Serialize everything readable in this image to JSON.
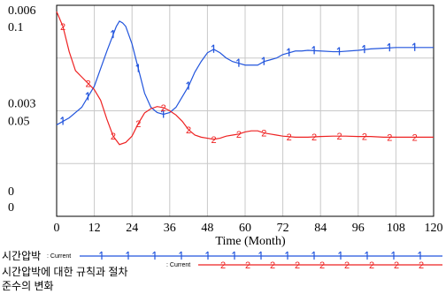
{
  "chart_data": {
    "type": "line",
    "xlabel": "Time (Month)",
    "xlim": [
      0,
      120
    ],
    "x_ticks": [
      0,
      12,
      24,
      36,
      48,
      60,
      72,
      84,
      96,
      108,
      120
    ],
    "grid": true,
    "legend_position": "bottom-left",
    "axes": [
      {
        "name": "left-top",
        "ticks": [
          "0.006",
          "0.003",
          "0"
        ],
        "ylim": [
          0,
          0.006
        ]
      },
      {
        "name": "left-bottom",
        "ticks": [
          "0.1",
          "0.05",
          "0"
        ],
        "ylim": [
          0,
          0.1
        ]
      }
    ],
    "series": [
      {
        "name": "시간압박",
        "run": "Current",
        "color": "#2255dd",
        "marker": "1",
        "axis": "left-top",
        "x": [
          0,
          4,
          8,
          12,
          16,
          19,
          20,
          21,
          22,
          24,
          26,
          28,
          30,
          32,
          34,
          36,
          38,
          40,
          42,
          44,
          46,
          48,
          50,
          52,
          54,
          56,
          58,
          60,
          62,
          64,
          66,
          68,
          70,
          72,
          74,
          76,
          78,
          80,
          84,
          88,
          90,
          96,
          100,
          104,
          108,
          112,
          116,
          120
        ],
        "y": [
          0.0026,
          0.0028,
          0.0031,
          0.0037,
          0.0047,
          0.0054,
          0.00555,
          0.0055,
          0.0054,
          0.0049,
          0.0042,
          0.0035,
          0.0031,
          0.00295,
          0.0029,
          0.00295,
          0.0031,
          0.0034,
          0.0037,
          0.0041,
          0.0044,
          0.00465,
          0.00475,
          0.00465,
          0.0045,
          0.0044,
          0.00435,
          0.0043,
          0.0043,
          0.0043,
          0.0044,
          0.00445,
          0.0045,
          0.0046,
          0.00465,
          0.0047,
          0.0047,
          0.00472,
          0.0047,
          0.00468,
          0.00468,
          0.00472,
          0.00476,
          0.00478,
          0.0048,
          0.0048,
          0.0048,
          0.0048
        ]
      },
      {
        "name": "시간압박에 대한 규칙과 절차 준수의 변화",
        "run": "Current",
        "color": "#ee2222",
        "marker": "2",
        "axis": "left-bottom",
        "x": [
          0,
          2,
          4,
          6,
          8,
          10,
          12,
          14,
          16,
          18,
          20,
          22,
          24,
          26,
          28,
          30,
          32,
          34,
          36,
          38,
          40,
          42,
          44,
          46,
          48,
          50,
          52,
          54,
          56,
          58,
          60,
          62,
          64,
          66,
          68,
          70,
          72,
          76,
          80,
          84,
          88,
          92,
          96,
          100,
          104,
          108,
          112,
          116,
          120
        ],
        "y": [
          0.097,
          0.09,
          0.078,
          0.069,
          0.066,
          0.063,
          0.06,
          0.055,
          0.046,
          0.038,
          0.034,
          0.035,
          0.038,
          0.044,
          0.049,
          0.051,
          0.052,
          0.0515,
          0.05,
          0.048,
          0.045,
          0.041,
          0.0385,
          0.0375,
          0.037,
          0.0365,
          0.037,
          0.038,
          0.0385,
          0.039,
          0.04,
          0.0405,
          0.0405,
          0.0395,
          0.039,
          0.0385,
          0.038,
          0.0375,
          0.0375,
          0.0378,
          0.038,
          0.038,
          0.0378,
          0.0378,
          0.0375,
          0.0375,
          0.0375,
          0.0375,
          0.0375
        ]
      }
    ]
  }
}
